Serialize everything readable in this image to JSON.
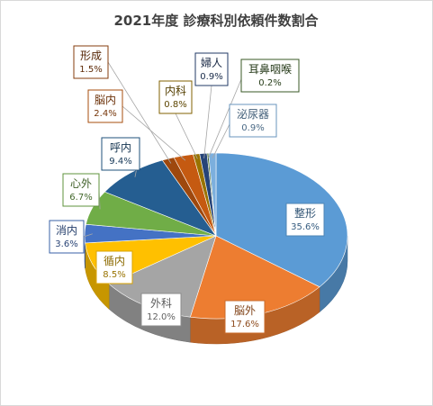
{
  "chart_data": {
    "type": "pie",
    "title": "2021年度 診療科別依頼件数割合",
    "slices": [
      {
        "label": "整形",
        "pct": "35.6%",
        "value": 35.6,
        "color": "#5B9BD5"
      },
      {
        "label": "脳外",
        "pct": "17.6%",
        "value": 17.6,
        "color": "#ED7D31"
      },
      {
        "label": "外科",
        "pct": "12.0%",
        "value": 12.0,
        "color": "#A5A5A5"
      },
      {
        "label": "循内",
        "pct": "8.5%",
        "value": 8.5,
        "color": "#FFC000"
      },
      {
        "label": "消内",
        "pct": "3.6%",
        "value": 3.6,
        "color": "#4472C4"
      },
      {
        "label": "心外",
        "pct": "6.7%",
        "value": 6.7,
        "color": "#70AD47"
      },
      {
        "label": "呼内",
        "pct": "9.4%",
        "value": 9.4,
        "color": "#255E91"
      },
      {
        "label": "形成",
        "pct": "1.5%",
        "value": 1.5,
        "color": "#9E480E"
      },
      {
        "label": "脳内",
        "pct": "2.4%",
        "value": 2.4,
        "color": "#C55A11"
      },
      {
        "label": "内科",
        "pct": "0.8%",
        "value": 0.8,
        "color": "#997300"
      },
      {
        "label": "婦人",
        "pct": "0.9%",
        "value": 0.9,
        "color": "#264478"
      },
      {
        "label": "耳鼻咽喉",
        "pct": "0.2%",
        "value": 0.2,
        "color": "#43682B"
      },
      {
        "label": "泌尿器",
        "pct": "0.9%",
        "value": 0.9,
        "color": "#7CAFDD"
      }
    ]
  }
}
